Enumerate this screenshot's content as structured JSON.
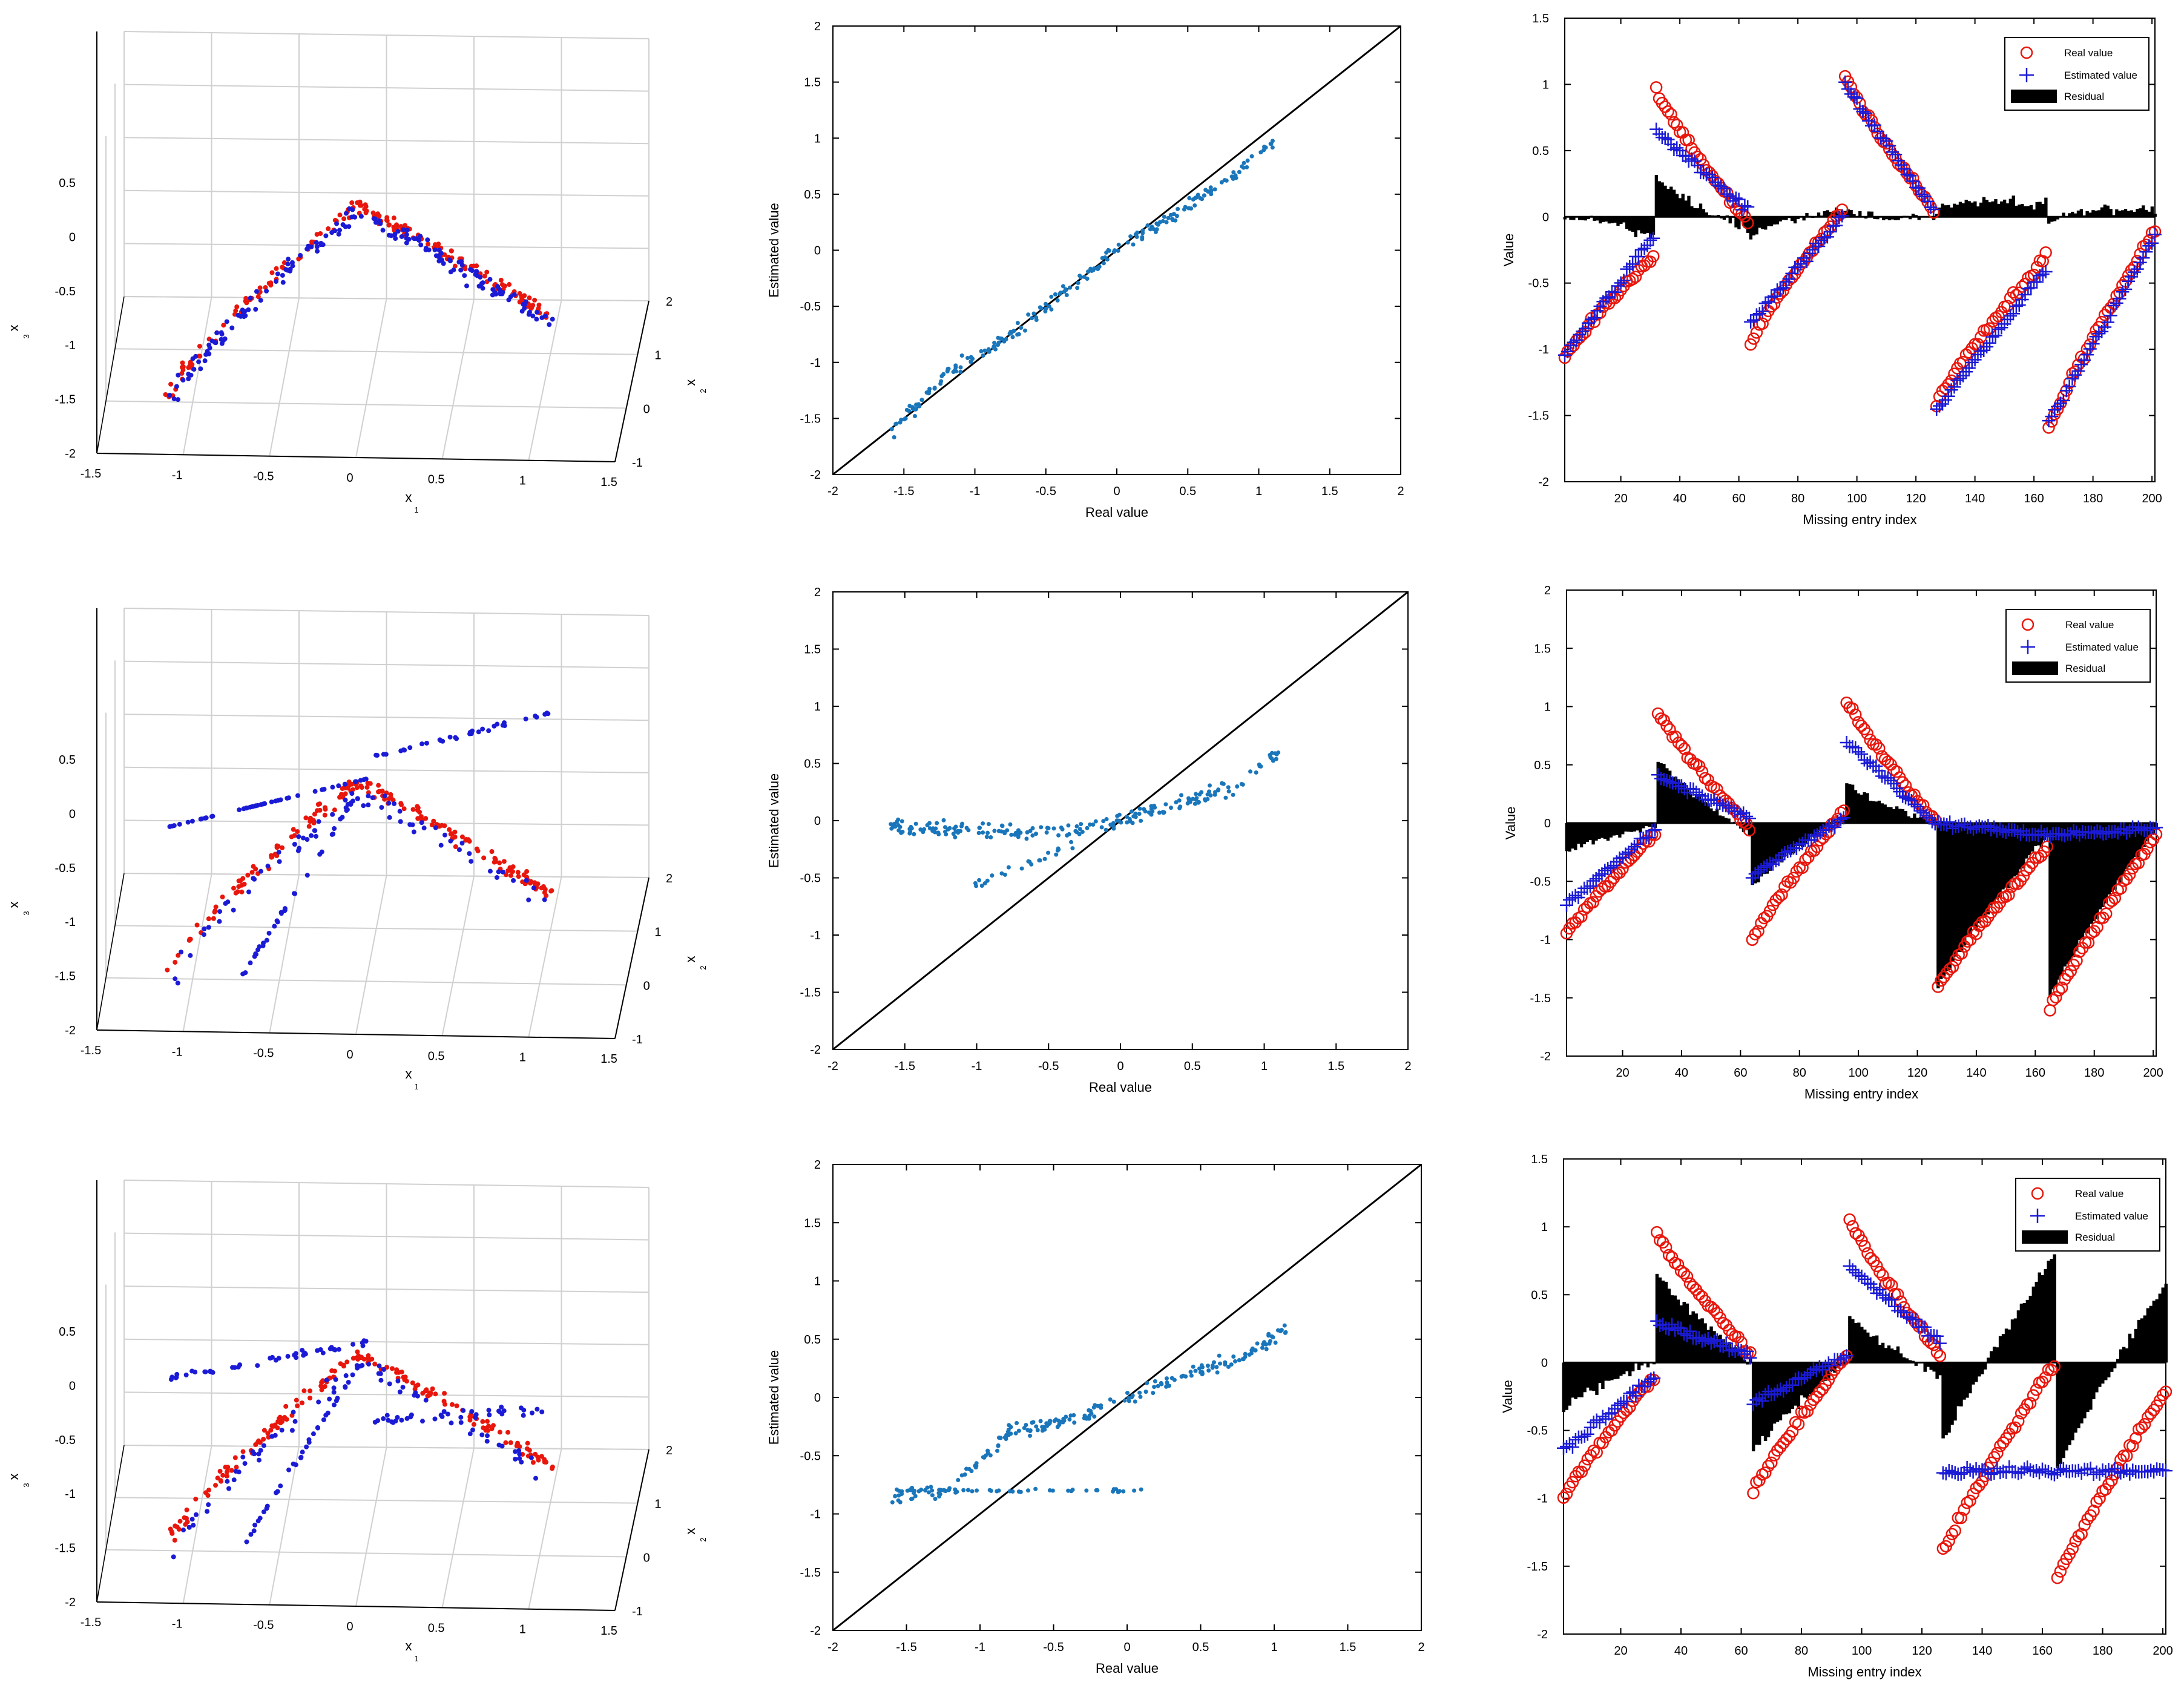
{
  "colors": {
    "real": "#e8160c",
    "estimated": "#1b1bd6",
    "scatter": "#1a76bb",
    "residual": "#000000",
    "grid": "#d0d0d0"
  },
  "labels": {
    "x1": "x",
    "x1_sub": "1",
    "x2": "x",
    "x2_sub": "2",
    "x3": "x",
    "x3_sub": "3",
    "scatter_x": "Real value",
    "scatter_y": "Estimated value",
    "series_x": "Missing entry index",
    "series_y": "Value"
  },
  "legend": {
    "real": "Real value",
    "estimated": "Estimated value",
    "residual": "Residual"
  },
  "chart_data": [
    {
      "type": "scatter",
      "row": 1,
      "kind": "3d",
      "title": "",
      "x1_ticks": [
        "-1.5",
        "-1",
        "-0.5",
        "0",
        "0.5",
        "1",
        "1.5"
      ],
      "x2_ticks": [
        "-1",
        "0",
        "1",
        "2"
      ],
      "x3_ticks": [
        "-2",
        "-1.5",
        "-1",
        "-0.5",
        "0",
        "0.5"
      ],
      "series": [
        {
          "name": "Real value",
          "color": "red"
        },
        {
          "name": "Estimated value",
          "color": "blue"
        }
      ]
    },
    {
      "type": "scatter",
      "row": 1,
      "kind": "real-vs-estimated",
      "xlim": [
        -2,
        2
      ],
      "ylim": [
        -2,
        2
      ],
      "x_ticks": [
        "-2",
        "-1.5",
        "-1",
        "-0.5",
        "0",
        "0.5",
        "1",
        "1.5",
        "2"
      ],
      "y_ticks": [
        "-2",
        "-1.5",
        "-1",
        "-0.5",
        "0",
        "0.5",
        "1",
        "1.5",
        "2"
      ],
      "xlabel": "Real value",
      "ylabel": "Estimated value",
      "reference_line": "y = x",
      "trend": [
        [
          -1.6,
          -1.65
        ],
        [
          -1.2,
          -1.1
        ],
        [
          -0.8,
          -0.8
        ],
        [
          -0.4,
          -0.4
        ],
        [
          0,
          0
        ],
        [
          0.4,
          0.3
        ],
        [
          0.8,
          0.65
        ],
        [
          1.1,
          0.95
        ]
      ]
    },
    {
      "type": "line",
      "row": 1,
      "kind": "series-with-residual",
      "xlim": [
        1,
        201
      ],
      "ylim": [
        -2,
        1.5
      ],
      "x_ticks": [
        "20",
        "40",
        "60",
        "80",
        "100",
        "120",
        "140",
        "160",
        "180",
        "200"
      ],
      "y_ticks": [
        "-2",
        "-1.5",
        "-1",
        "-0.5",
        "0",
        "0.5",
        "1",
        "1.5"
      ],
      "xlabel": "Missing entry index",
      "ylabel": "Value",
      "segments": [
        {
          "from": 1,
          "to": 31,
          "real_start": -1.05,
          "real_end": -0.3,
          "est_start": -1.05,
          "est_end": -0.15
        },
        {
          "from": 32,
          "to": 63,
          "real_start": 0.95,
          "real_end": -0.05,
          "est_start": 0.65,
          "est_end": 0.05
        },
        {
          "from": 64,
          "to": 95,
          "real_start": -0.95,
          "real_end": 0.05,
          "est_start": -0.8,
          "est_end": 0.0
        },
        {
          "from": 96,
          "to": 126,
          "real_start": 1.05,
          "real_end": 0.05,
          "est_start": 1.0,
          "est_end": 0.05
        },
        {
          "from": 127,
          "to": 164,
          "real_start": -1.4,
          "real_end": -0.3,
          "est_start": -1.45,
          "est_end": -0.4
        },
        {
          "from": 165,
          "to": 201,
          "real_start": -1.6,
          "real_end": -0.1,
          "est_start": -1.55,
          "est_end": -0.15
        }
      ]
    },
    {
      "type": "scatter",
      "row": 2,
      "kind": "3d",
      "title": "",
      "x1_ticks": [
        "-1.5",
        "-1",
        "-0.5",
        "0",
        "0.5",
        "1",
        "1.5"
      ],
      "x2_ticks": [
        "-1",
        "0",
        "1",
        "2"
      ],
      "x3_ticks": [
        "-2",
        "-1.5",
        "-1",
        "-0.5",
        "0",
        "0.5"
      ],
      "series": [
        {
          "name": "Real value",
          "color": "red"
        },
        {
          "name": "Estimated value",
          "color": "blue"
        }
      ]
    },
    {
      "type": "scatter",
      "row": 2,
      "kind": "real-vs-estimated",
      "xlim": [
        -2,
        2
      ],
      "ylim": [
        -2,
        2
      ],
      "x_ticks": [
        "-2",
        "-1.5",
        "-1",
        "-0.5",
        "0",
        "0.5",
        "1",
        "1.5",
        "2"
      ],
      "y_ticks": [
        "-2",
        "-1.5",
        "-1",
        "-0.5",
        "0",
        "0.5",
        "1",
        "1.5",
        "2"
      ],
      "xlabel": "Real value",
      "ylabel": "Estimated value",
      "reference_line": "y = x",
      "trend": [
        [
          -1.6,
          -0.05
        ],
        [
          -1.2,
          -0.08
        ],
        [
          -0.8,
          -0.1
        ],
        [
          -0.4,
          -0.1
        ],
        [
          0,
          0.0
        ],
        [
          0.4,
          0.15
        ],
        [
          0.8,
          0.3
        ],
        [
          1.1,
          0.6
        ]
      ]
    },
    {
      "type": "line",
      "row": 2,
      "kind": "series-with-residual",
      "xlim": [
        1,
        201
      ],
      "ylim": [
        -2,
        2
      ],
      "x_ticks": [
        "20",
        "40",
        "60",
        "80",
        "100",
        "120",
        "140",
        "160",
        "180",
        "200"
      ],
      "y_ticks": [
        "-2",
        "-1.5",
        "-1",
        "-0.5",
        "0",
        "0.5",
        "1",
        "1.5",
        "2"
      ],
      "xlabel": "Missing entry index",
      "ylabel": "Value",
      "segments": [
        {
          "from": 1,
          "to": 31,
          "real_start": -0.95,
          "real_end": -0.1,
          "est_start": -0.7,
          "est_end": -0.05
        },
        {
          "from": 32,
          "to": 63,
          "real_start": 0.95,
          "real_end": -0.05,
          "est_start": 0.4,
          "est_end": 0.05
        },
        {
          "from": 64,
          "to": 95,
          "real_start": -1.0,
          "real_end": 0.1,
          "est_start": -0.45,
          "est_end": 0.05
        },
        {
          "from": 96,
          "to": 126,
          "real_start": 1.05,
          "real_end": 0.0,
          "est_start": 0.7,
          "est_end": 0.0
        },
        {
          "from": 127,
          "to": 164,
          "real_start": -1.4,
          "real_end": -0.2,
          "est_start": 0.0,
          "est_end": -0.1
        },
        {
          "from": 165,
          "to": 201,
          "real_start": -1.6,
          "real_end": -0.1,
          "est_start": -0.1,
          "est_end": -0.05
        }
      ]
    },
    {
      "type": "scatter",
      "row": 3,
      "kind": "3d",
      "title": "",
      "x1_ticks": [
        "-1.5",
        "-1",
        "-0.5",
        "0",
        "0.5",
        "1",
        "1.5"
      ],
      "x2_ticks": [
        "-1",
        "0",
        "1",
        "2"
      ],
      "x3_ticks": [
        "-2",
        "-1.5",
        "-1",
        "-0.5",
        "0",
        "0.5"
      ],
      "series": [
        {
          "name": "Real value",
          "color": "red"
        },
        {
          "name": "Estimated value",
          "color": "blue"
        }
      ]
    },
    {
      "type": "scatter",
      "row": 3,
      "kind": "real-vs-estimated",
      "xlim": [
        -2,
        2
      ],
      "ylim": [
        -2,
        2
      ],
      "x_ticks": [
        "-2",
        "-1.5",
        "-1",
        "-0.5",
        "0",
        "0.5",
        "1",
        "1.5",
        "2"
      ],
      "y_ticks": [
        "-2",
        "-1.5",
        "-1",
        "-0.5",
        "0",
        "0.5",
        "1",
        "1.5",
        "2"
      ],
      "xlabel": "Real value",
      "ylabel": "Estimated value",
      "reference_line": "y = x",
      "trend": [
        [
          -1.6,
          -0.85
        ],
        [
          -1.2,
          -0.8
        ],
        [
          -0.8,
          -0.3
        ],
        [
          -0.4,
          -0.2
        ],
        [
          0,
          0.0
        ],
        [
          0.4,
          0.2
        ],
        [
          0.8,
          0.35
        ],
        [
          1.1,
          0.6
        ]
      ]
    },
    {
      "type": "line",
      "row": 3,
      "kind": "series-with-residual",
      "xlim": [
        1,
        201
      ],
      "ylim": [
        -2,
        1.5
      ],
      "x_ticks": [
        "20",
        "40",
        "60",
        "80",
        "100",
        "120",
        "140",
        "160",
        "180",
        "200"
      ],
      "y_ticks": [
        "-2",
        "-1.5",
        "-1",
        "-0.5",
        "0",
        "0.5",
        "1",
        "1.5"
      ],
      "xlabel": "Missing entry index",
      "ylabel": "Value",
      "segments": [
        {
          "from": 1,
          "to": 31,
          "real_start": -1.0,
          "real_end": -0.1,
          "est_start": -0.65,
          "est_end": -0.1
        },
        {
          "from": 32,
          "to": 63,
          "real_start": 0.95,
          "real_end": 0.05,
          "est_start": 0.3,
          "est_end": 0.05
        },
        {
          "from": 64,
          "to": 95,
          "real_start": -0.95,
          "real_end": 0.05,
          "est_start": -0.3,
          "est_end": 0.05
        },
        {
          "from": 96,
          "to": 126,
          "real_start": 1.05,
          "real_end": 0.05,
          "est_start": 0.7,
          "est_end": 0.15
        },
        {
          "from": 127,
          "to": 164,
          "real_start": -1.4,
          "real_end": 0.0,
          "est_start": -0.8,
          "est_end": -0.8
        },
        {
          "from": 165,
          "to": 201,
          "real_start": -1.6,
          "real_end": -0.2,
          "est_start": -0.8,
          "est_end": -0.8
        }
      ]
    }
  ]
}
